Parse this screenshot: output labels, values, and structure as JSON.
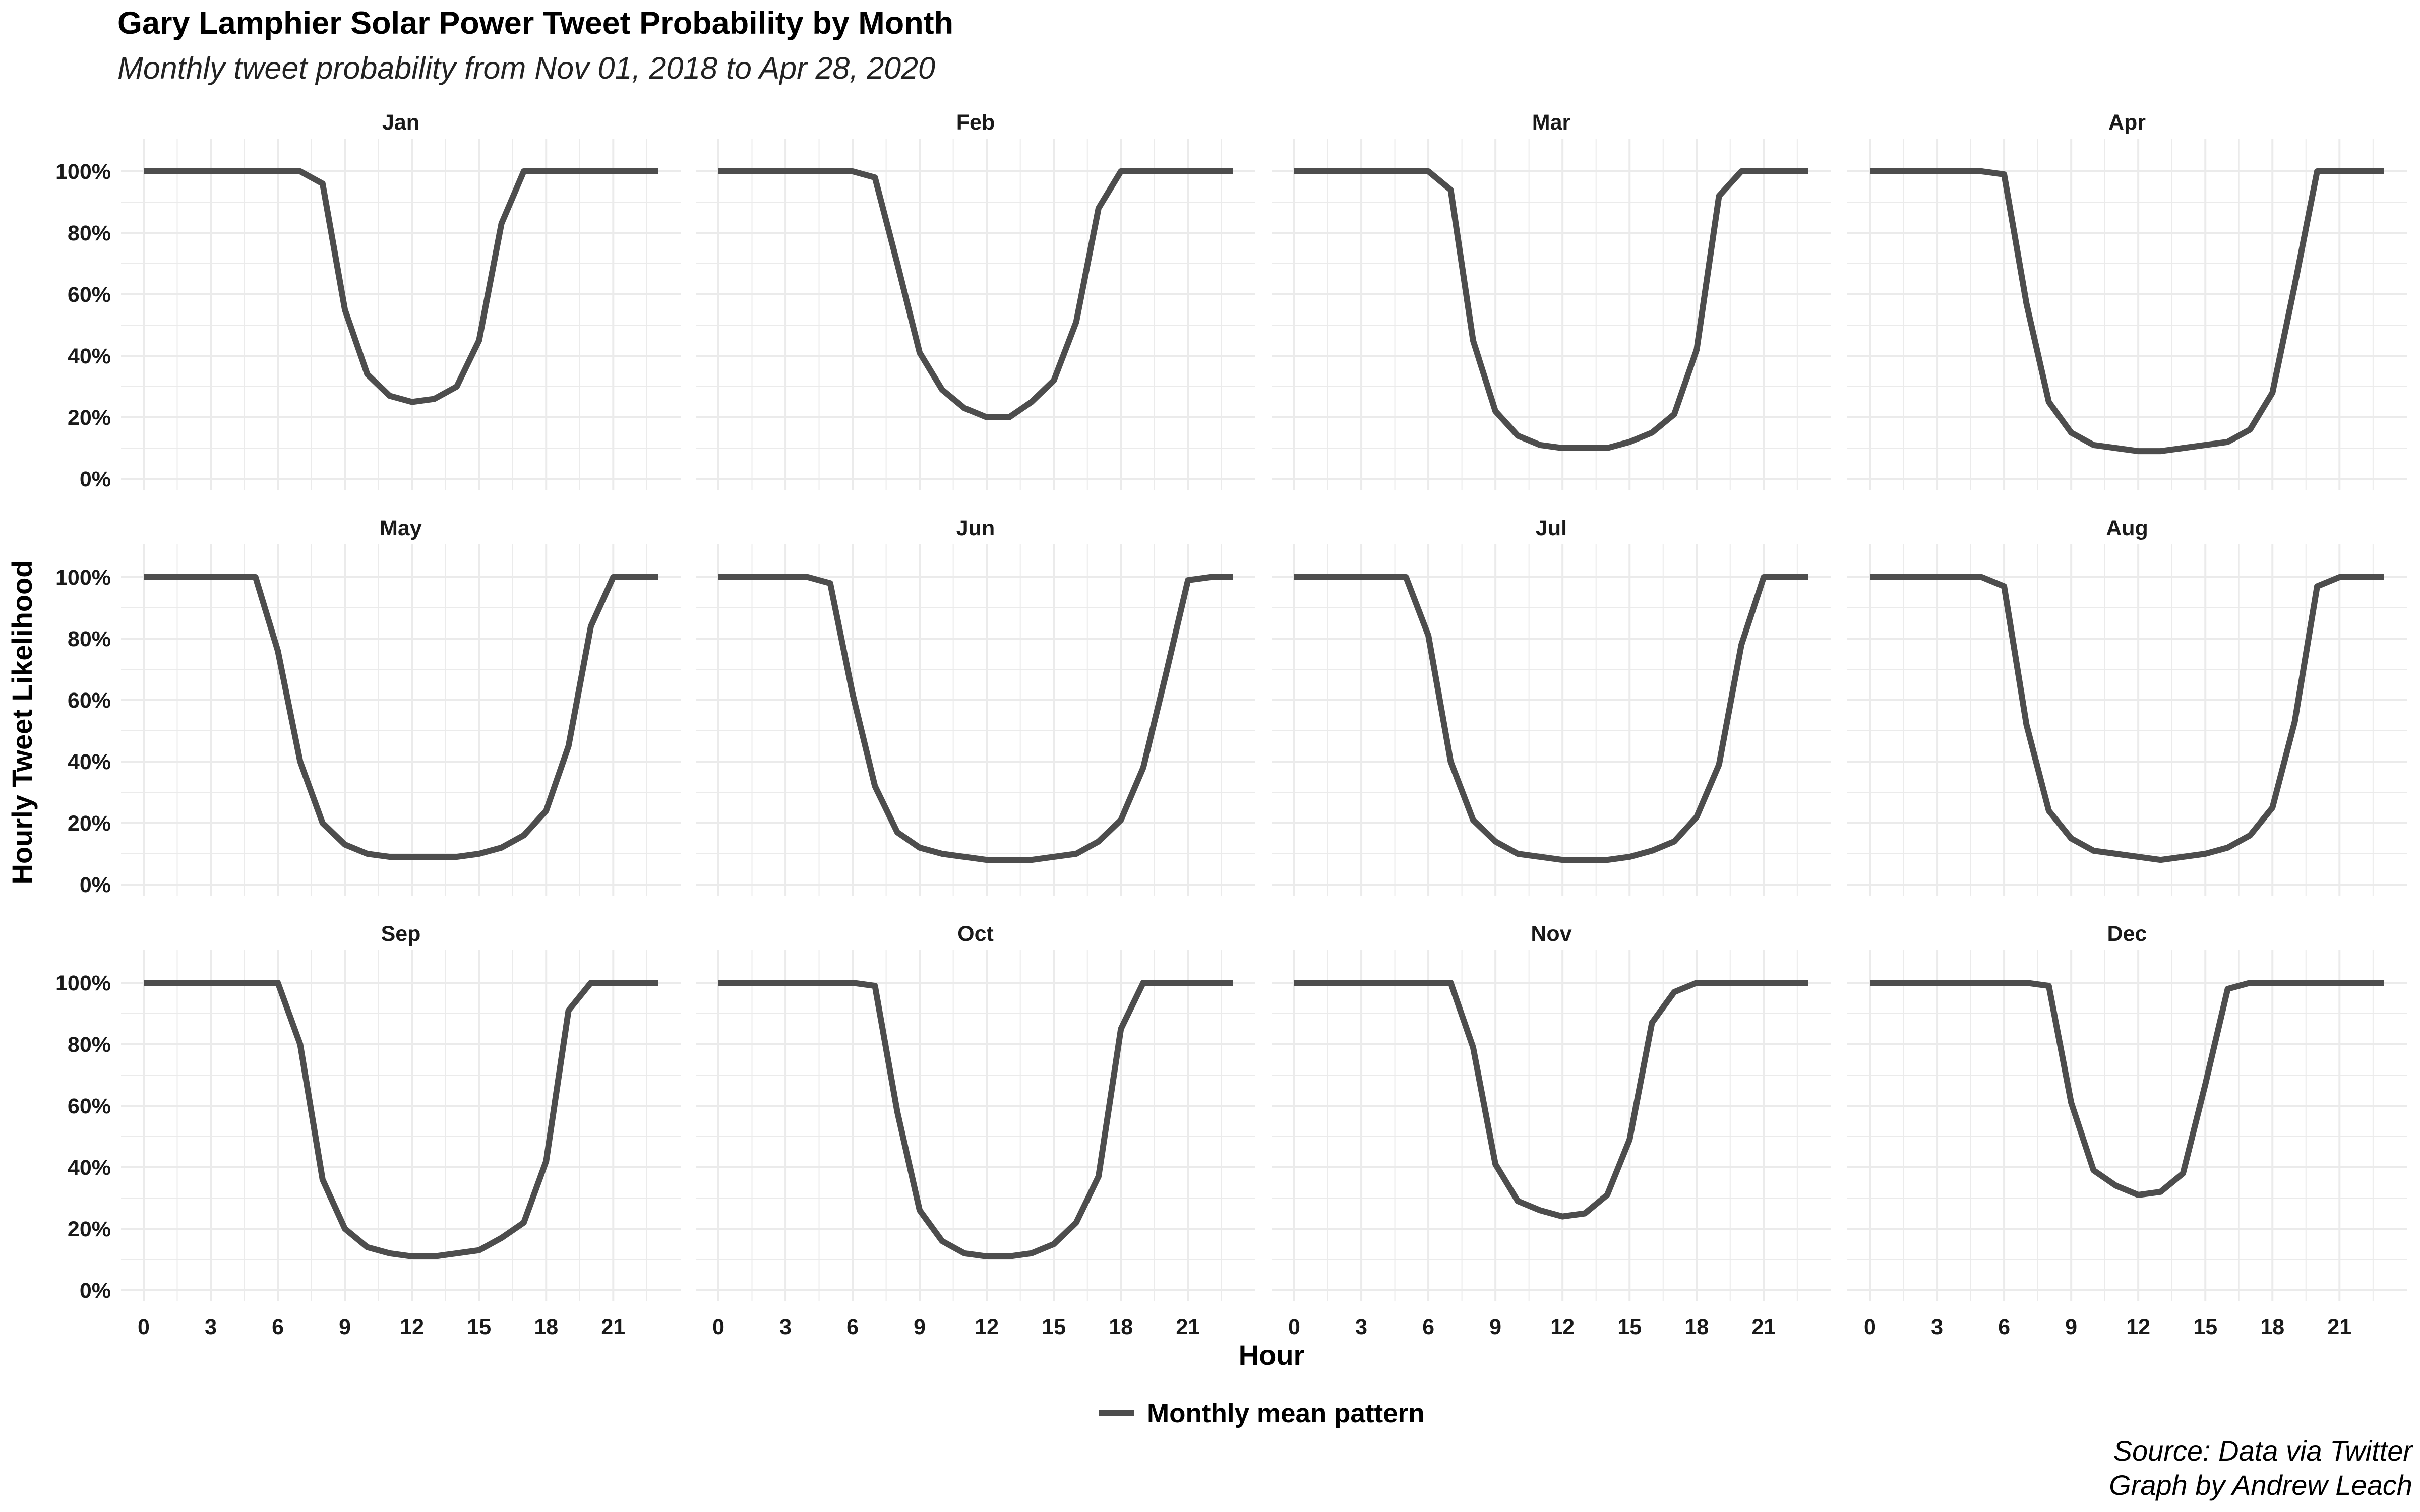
{
  "title": "Gary Lamphier Solar Power Tweet Probability by Month",
  "subtitle": "Monthly tweet probability from Nov 01, 2018 to Apr 28, 2020",
  "caption": [
    "Source: Data via Twitter",
    "Graph by Andrew Leach"
  ],
  "colors": {
    "line": "#4d4d4d",
    "grid": "#ebebeb"
  },
  "chart_data": {
    "type": "line",
    "facet": "month",
    "xlabel": "Hour",
    "ylabel": "Hourly Tweet Likelihood",
    "xlim": [
      0,
      23
    ],
    "ylim": [
      0,
      1
    ],
    "x_ticks": [
      0,
      3,
      6,
      9,
      12,
      15,
      18,
      21
    ],
    "y_ticks": [
      0,
      0.2,
      0.4,
      0.6,
      0.8,
      1.0
    ],
    "y_tick_labels": [
      "0%",
      "20%",
      "40%",
      "60%",
      "80%",
      "100%"
    ],
    "grid": true,
    "legend": {
      "position": "bottom",
      "entries": [
        "Monthly mean pattern"
      ]
    },
    "x": [
      0,
      1,
      2,
      3,
      4,
      5,
      6,
      7,
      8,
      9,
      10,
      11,
      12,
      13,
      14,
      15,
      16,
      17,
      18,
      19,
      20,
      21,
      22,
      23
    ],
    "series": [
      {
        "month": "Jan",
        "values": [
          1,
          1,
          1,
          1,
          1,
          1,
          1,
          1,
          0.96,
          0.55,
          0.34,
          0.27,
          0.25,
          0.26,
          0.3,
          0.45,
          0.83,
          1,
          1,
          1,
          1,
          1,
          1,
          1
        ]
      },
      {
        "month": "Feb",
        "values": [
          1,
          1,
          1,
          1,
          1,
          1,
          1,
          0.98,
          0.7,
          0.41,
          0.29,
          0.23,
          0.2,
          0.2,
          0.25,
          0.32,
          0.51,
          0.88,
          1,
          1,
          1,
          1,
          1,
          1
        ]
      },
      {
        "month": "Mar",
        "values": [
          1,
          1,
          1,
          1,
          1,
          1,
          1,
          0.94,
          0.45,
          0.22,
          0.14,
          0.11,
          0.1,
          0.1,
          0.1,
          0.12,
          0.15,
          0.21,
          0.42,
          0.92,
          1,
          1,
          1,
          1
        ]
      },
      {
        "month": "Apr",
        "values": [
          1,
          1,
          1,
          1,
          1,
          1,
          0.99,
          0.57,
          0.25,
          0.15,
          0.11,
          0.1,
          0.09,
          0.09,
          0.1,
          0.11,
          0.12,
          0.16,
          0.28,
          0.63,
          1,
          1,
          1,
          1
        ]
      },
      {
        "month": "May",
        "values": [
          1,
          1,
          1,
          1,
          1,
          1,
          0.76,
          0.4,
          0.2,
          0.13,
          0.1,
          0.09,
          0.09,
          0.09,
          0.09,
          0.1,
          0.12,
          0.16,
          0.24,
          0.45,
          0.84,
          1,
          1,
          1
        ]
      },
      {
        "month": "Jun",
        "values": [
          1,
          1,
          1,
          1,
          1,
          0.98,
          0.62,
          0.32,
          0.17,
          0.12,
          0.1,
          0.09,
          0.08,
          0.08,
          0.08,
          0.09,
          0.1,
          0.14,
          0.21,
          0.38,
          0.68,
          0.99,
          1,
          1
        ]
      },
      {
        "month": "Jul",
        "values": [
          1,
          1,
          1,
          1,
          1,
          1,
          0.81,
          0.4,
          0.21,
          0.14,
          0.1,
          0.09,
          0.08,
          0.08,
          0.08,
          0.09,
          0.11,
          0.14,
          0.22,
          0.39,
          0.78,
          1,
          1,
          1
        ]
      },
      {
        "month": "Aug",
        "values": [
          1,
          1,
          1,
          1,
          1,
          1,
          0.97,
          0.52,
          0.24,
          0.15,
          0.11,
          0.1,
          0.09,
          0.08,
          0.09,
          0.1,
          0.12,
          0.16,
          0.25,
          0.53,
          0.97,
          1,
          1,
          1
        ]
      },
      {
        "month": "Sep",
        "values": [
          1,
          1,
          1,
          1,
          1,
          1,
          1,
          0.8,
          0.36,
          0.2,
          0.14,
          0.12,
          0.11,
          0.11,
          0.12,
          0.13,
          0.17,
          0.22,
          0.42,
          0.91,
          1,
          1,
          1,
          1
        ]
      },
      {
        "month": "Oct",
        "values": [
          1,
          1,
          1,
          1,
          1,
          1,
          1,
          0.99,
          0.58,
          0.26,
          0.16,
          0.12,
          0.11,
          0.11,
          0.12,
          0.15,
          0.22,
          0.37,
          0.85,
          1,
          1,
          1,
          1,
          1
        ]
      },
      {
        "month": "Nov",
        "values": [
          1,
          1,
          1,
          1,
          1,
          1,
          1,
          1,
          0.79,
          0.41,
          0.29,
          0.26,
          0.24,
          0.25,
          0.31,
          0.49,
          0.87,
          0.97,
          1,
          1,
          1,
          1,
          1,
          1
        ]
      },
      {
        "month": "Dec",
        "values": [
          1,
          1,
          1,
          1,
          1,
          1,
          1,
          1,
          0.99,
          0.61,
          0.39,
          0.34,
          0.31,
          0.32,
          0.38,
          0.67,
          0.98,
          1,
          1,
          1,
          1,
          1,
          1,
          1
        ]
      }
    ]
  }
}
